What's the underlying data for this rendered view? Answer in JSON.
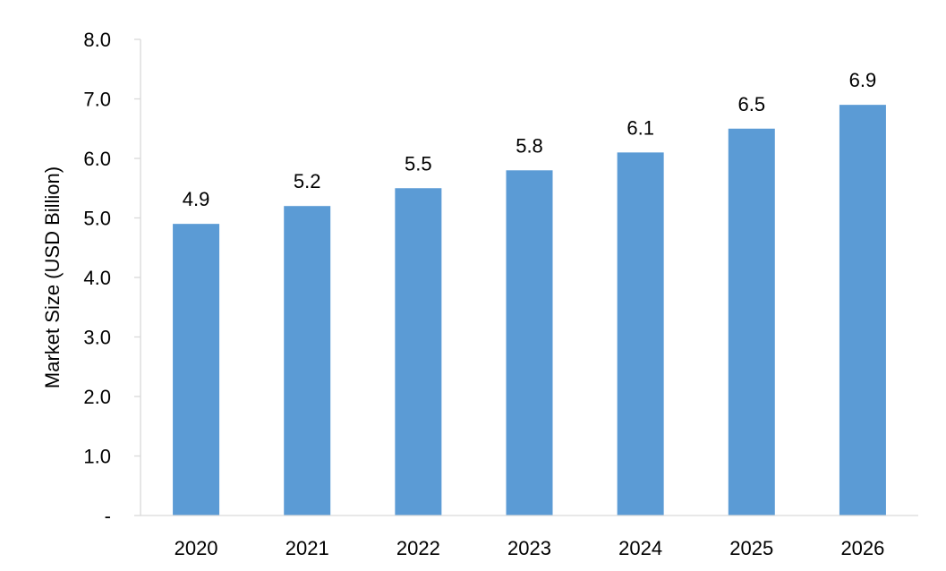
{
  "chart_data": {
    "type": "bar",
    "title": "",
    "xlabel": "",
    "ylabel": "Market Size (USD Billion)",
    "categories": [
      "2020",
      "2021",
      "2022",
      "2023",
      "2024",
      "2025",
      "2026"
    ],
    "values": [
      4.9,
      5.2,
      5.5,
      5.8,
      6.1,
      6.5,
      6.9
    ],
    "data_labels": [
      "4.9",
      "5.2",
      "5.5",
      "5.8",
      "6.1",
      "6.5",
      "6.9"
    ],
    "ylim": [
      0,
      8
    ],
    "yticks": [
      0,
      1,
      2,
      3,
      4,
      5,
      6,
      7,
      8
    ],
    "ytick_labels": [
      "-",
      "1.0",
      "2.0",
      "3.0",
      "4.0",
      "5.0",
      "6.0",
      "7.0",
      "8.0"
    ],
    "grid": false,
    "legend": "none",
    "bar_color": "#5b9bd5",
    "axis_color": "#d9d9d9"
  }
}
